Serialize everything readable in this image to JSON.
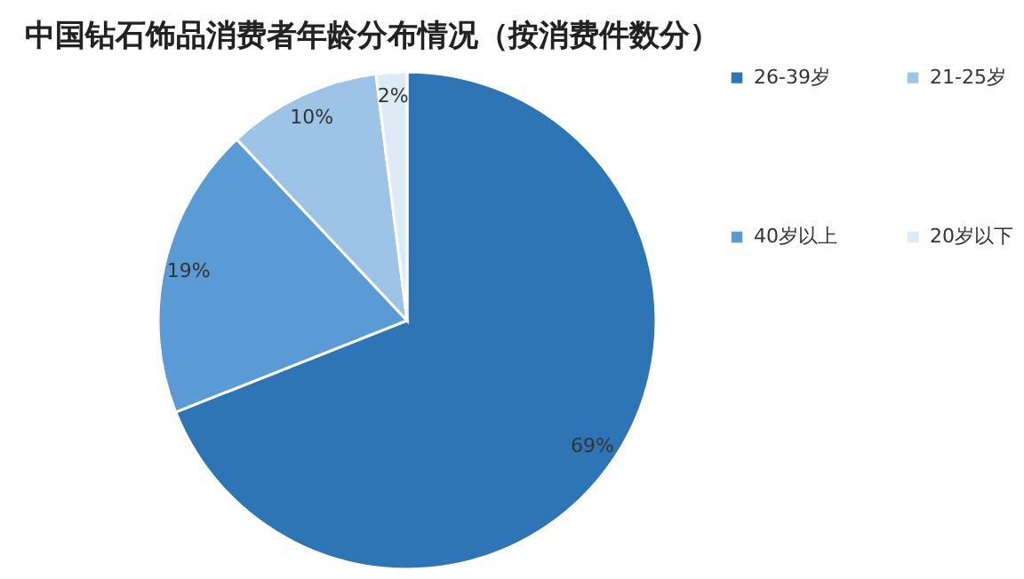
{
  "chart_data": {
    "type": "pie",
    "title": "中国钻石饰品消费者年龄分布情况（按消费件数分）",
    "categories": [
      "26-39岁",
      "40岁以上",
      "21-25岁",
      "20岁以下"
    ],
    "values": [
      69,
      19,
      10,
      2
    ],
    "colors": [
      "#2e75b6",
      "#5b9bd5",
      "#9dc3e6",
      "#deebf7"
    ],
    "value_labels": [
      "69%",
      "19%",
      "10%",
      "2%"
    ],
    "legend": "right"
  }
}
